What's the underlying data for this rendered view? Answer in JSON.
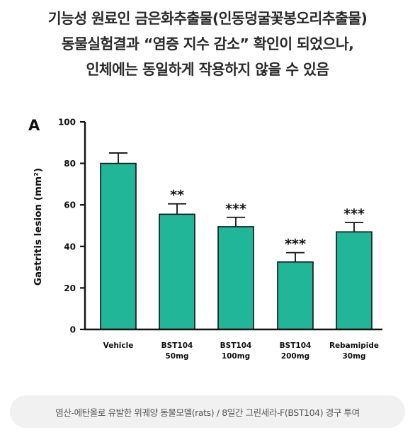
{
  "headline": {
    "lines": [
      "기능성 원료인 금은화추출물(인동덩굴꽃봉오리추출물)",
      "동물실험결과 “염증 지수 감소” 확인이 되었으나,",
      "인체에는 동일하게 작용하지 않을 수 있음"
    ]
  },
  "chart_data": {
    "type": "bar",
    "panel_label": "A",
    "ylabel": "Gastritis lesion (mm²)",
    "ylim": [
      0,
      100
    ],
    "yticks": [
      0,
      20,
      40,
      60,
      80,
      100
    ],
    "categories": [
      [
        "Vehicle"
      ],
      [
        "BST104",
        "50mg"
      ],
      [
        "BST104",
        "100mg"
      ],
      [
        "BST104",
        "200mg"
      ],
      [
        "Rebamipide",
        "30mg"
      ]
    ],
    "values": [
      80,
      55.5,
      49.5,
      32.5,
      47
    ],
    "errors": [
      5,
      5,
      4.5,
      4.5,
      4.5
    ],
    "significance": [
      "",
      "**",
      "***",
      "***",
      "***"
    ],
    "bar_color": "#20b697"
  },
  "footer": {
    "caption": "염산-에탄올로 유발한 위궤양 동물모델(rats) / 8일간 그린세라-F(BST104) 경구 투여"
  }
}
